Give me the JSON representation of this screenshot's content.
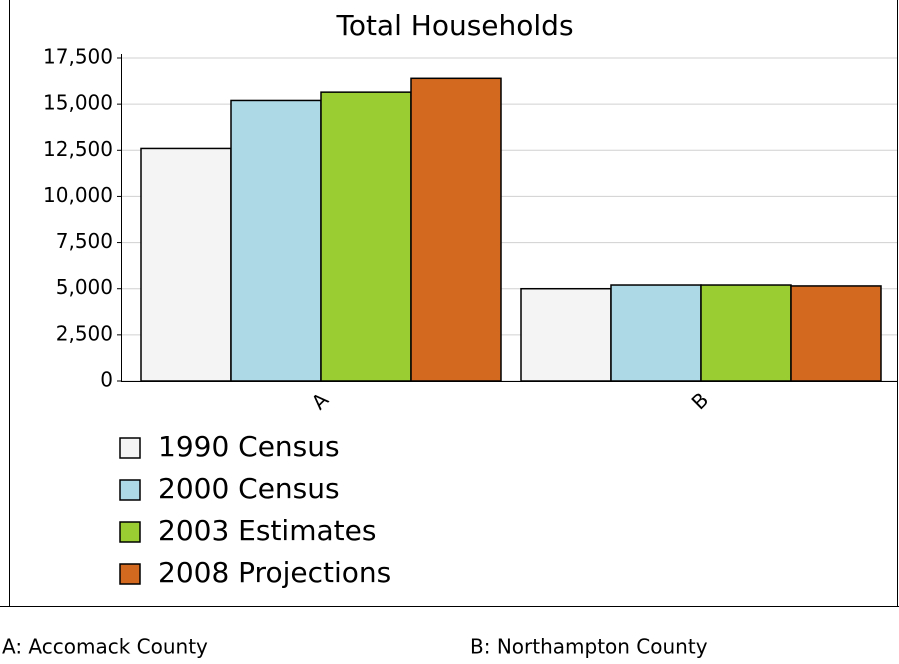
{
  "chart_data": {
    "type": "bar",
    "title": "Total Households",
    "categories": [
      "A",
      "B"
    ],
    "series": [
      {
        "name": "1990 Census",
        "color": "#f4f4f4",
        "values": [
          12600,
          5000
        ]
      },
      {
        "name": "2000 Census",
        "color": "#add8e6",
        "values": [
          15200,
          5200
        ]
      },
      {
        "name": "2003 Estimates",
        "color": "#9acd32",
        "values": [
          15650,
          5200
        ]
      },
      {
        "name": "2008 Projections",
        "color": "#d2691e",
        "values": [
          16400,
          5150
        ]
      }
    ],
    "ylim": [
      0,
      17500
    ],
    "yticks": [
      0,
      {
        "value": 2500,
        "label": "2,500"
      },
      {
        "value": 5000,
        "label": "5,000"
      },
      {
        "value": 7500,
        "label": "7,500"
      },
      {
        "value": 10000,
        "label": "10,000"
      },
      {
        "value": 12500,
        "label": "12,500"
      },
      {
        "value": 15000,
        "label": "15,000"
      },
      {
        "value": 17500,
        "label": "17,500"
      }
    ],
    "grid": true,
    "footnotes": [
      "A: Accomack County",
      "B: Northampton County"
    ]
  }
}
